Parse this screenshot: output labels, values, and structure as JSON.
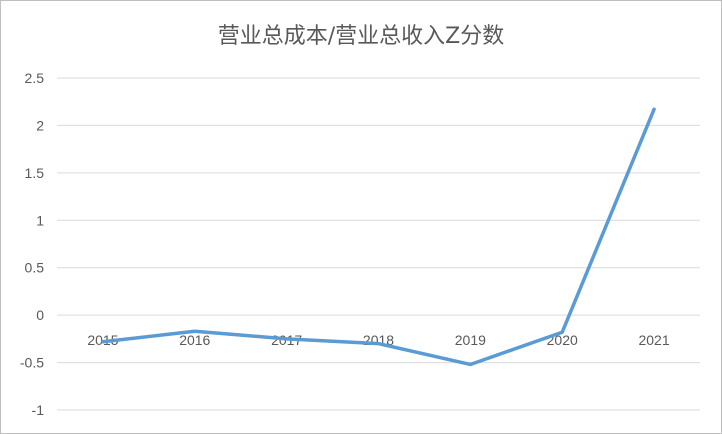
{
  "chart_data": {
    "type": "line",
    "title": "营业总成本/营业总收入Z分数",
    "xlabel": "",
    "ylabel": "",
    "categories": [
      "2015",
      "2016",
      "2017",
      "2018",
      "2019",
      "2020",
      "2021"
    ],
    "series": [
      {
        "values": [
          -0.28,
          -0.17,
          -0.25,
          -0.3,
          -0.52,
          -0.18,
          2.17
        ]
      }
    ],
    "ylim": [
      -1,
      2.5
    ],
    "yticks": [
      "-1",
      "-0.5",
      "0",
      "0.5",
      "1",
      "1.5",
      "2",
      "2.5"
    ],
    "grid": true,
    "legend": "none",
    "colors": {
      "line": "#5b9bd5",
      "grid": "#d9d9d9",
      "text": "#595959"
    }
  }
}
